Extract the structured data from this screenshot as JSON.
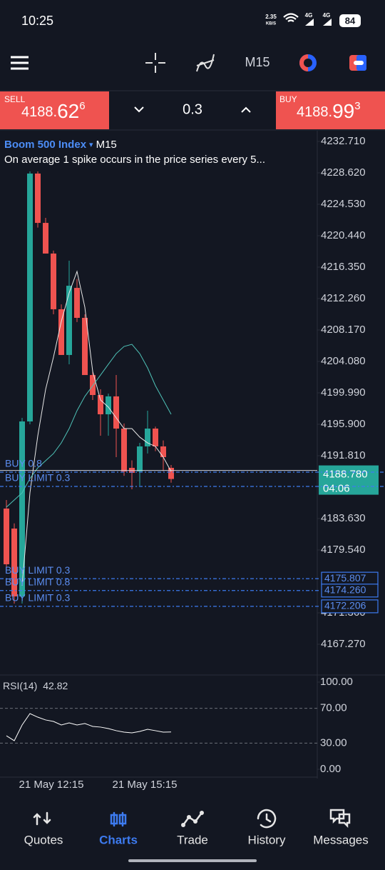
{
  "status_bar": {
    "time": "10:25",
    "net_speed": "2.35",
    "net_unit": "KB/S",
    "signal_1": "4G",
    "signal_2": "4G",
    "battery": "84"
  },
  "toolbar": {
    "timeframe": "M15"
  },
  "trade_bar": {
    "sell": {
      "label": "SELL",
      "price": "4188.",
      "price_big": "62",
      "price_sup": "6"
    },
    "volume": "0.3",
    "buy": {
      "label": "BUY",
      "price": "4188.",
      "price_big": "99",
      "price_sup": "3"
    }
  },
  "chart": {
    "symbol": "Boom 500 Index",
    "symbol_caret": "▾",
    "timeframe": "M15",
    "note": "On average 1 spike occurs in the price series every 5...",
    "ylim": [
      4163.27,
      4233.92
    ],
    "yticks": [
      {
        "value": 4232.71,
        "label": "4232.710"
      },
      {
        "value": 4228.62,
        "label": "4228.620"
      },
      {
        "value": 4224.53,
        "label": "4224.530"
      },
      {
        "value": 4220.44,
        "label": "4220.440"
      },
      {
        "value": 4216.35,
        "label": "4216.350"
      },
      {
        "value": 4212.26,
        "label": "4212.260"
      },
      {
        "value": 4208.17,
        "label": "4208.170"
      },
      {
        "value": 4204.08,
        "label": "4204.080"
      },
      {
        "value": 4199.99,
        "label": "4199.990"
      },
      {
        "value": 4195.9,
        "label": "4195.900"
      },
      {
        "value": 4191.81,
        "label": "4191.810"
      },
      {
        "value": 4183.63,
        "label": "4183.630"
      },
      {
        "value": 4179.54,
        "label": "4179.540"
      },
      {
        "value": 4171.36,
        "label": "4171.360"
      },
      {
        "value": 4167.27,
        "label": "4167.270"
      }
    ],
    "candles": {
      "open": [
        4184.93,
        4182.33,
        4173.5,
        4196.27,
        4228.53,
        4222.11,
        4218.12,
        4210.87,
        4204.92,
        4213.65,
        4209.75,
        4202.31,
        4199.71,
        4197.2,
        4199.53,
        4195.34,
        4190.23,
        4189.76,
        4193.02,
        4195.34,
        4193.02,
        4190.23
      ],
      "high": [
        4186.05,
        4183.0,
        4196.74,
        4228.81,
        4228.81,
        4222.76,
        4218.5,
        4211.5,
        4217.19,
        4214.8,
        4210.2,
        4202.9,
        4200.45,
        4199.9,
        4202.31,
        4196.0,
        4191.2,
        4193.48,
        4197.67,
        4195.6,
        4193.8,
        4190.6
      ],
      "low": [
        4177.22,
        4172.57,
        4172.57,
        4195.9,
        4221.5,
        4218.12,
        4210.22,
        4204.92,
        4203.71,
        4209.2,
        4202.31,
        4199.06,
        4194.41,
        4194.41,
        4191.62,
        4189.2,
        4187.44,
        4187.9,
        4192.1,
        4192.4,
        4189.8,
        4188.3
      ],
      "close": [
        4177.68,
        4173.5,
        4196.27,
        4228.53,
        4222.11,
        4218.12,
        4210.87,
        4204.92,
        4213.93,
        4209.75,
        4202.31,
        4199.71,
        4197.2,
        4199.53,
        4195.34,
        4189.76,
        4189.58,
        4193.02,
        4195.34,
        4193.02,
        4191.62,
        4188.78
      ]
    },
    "ma_fast": [
      null,
      null,
      4174.89,
      4186.98,
      4194.41,
      4200.45,
      4204.64,
      4209.29,
      4213.0,
      4215.79,
      4211.14,
      4202.78,
      4199.06,
      4198.13,
      4196.74,
      4195.34,
      4195.34,
      4194.23,
      4193.48,
      4193.02,
      4191.62,
      4189.76
    ],
    "ma_slow": [
      4185.12,
      4186.05,
      4186.98,
      4188.84,
      4190.23,
      4191.16,
      4192.09,
      4193.48,
      4195.34,
      4197.67,
      4199.53,
      4200.92,
      4202.31,
      4203.71,
      4205.1,
      4206.03,
      4206.31,
      4205.1,
      4203.24,
      4200.92,
      4199.06,
      4197.2
    ],
    "current_price": {
      "value": 4188.78,
      "label": "4188.780"
    },
    "countdown": "04:06",
    "orders": [
      {
        "label": "BUY 0.8",
        "price": 4189.67
      },
      {
        "label": "BUY LIMIT 0.3",
        "price": 4187.81
      },
      {
        "label": "BUY LIMIT 0.3",
        "price": {
          "value": 4175.807,
          "label": "4175.807"
        }
      },
      {
        "label": "BUY LIMIT 0.8",
        "price": {
          "value": 4174.26,
          "label": "4174.260"
        }
      },
      {
        "label": "BUY LIMIT 0.3",
        "price": {
          "value": 4172.206,
          "label": "4172.206"
        }
      }
    ],
    "x_labels": [
      "21 May 12:15",
      "21 May 15:15"
    ]
  },
  "rsi": {
    "label": "RSI(14)",
    "value": 42.82,
    "ylim": [
      -9,
      105.7
    ],
    "yticks": [
      {
        "value": 100,
        "label": "100.00"
      },
      {
        "value": 70,
        "label": "70.00"
      },
      {
        "value": 30,
        "label": "30.00"
      },
      {
        "value": 0,
        "label": "0.00"
      }
    ],
    "values": [
      38.5,
      32.8,
      50.8,
      63.9,
      59.8,
      56.6,
      54.9,
      50.8,
      53.3,
      50.8,
      52.5,
      49.2,
      48.4,
      46.7,
      44.3,
      42.6,
      41.8,
      43.4,
      45.9,
      44.3,
      42.6,
      42.82
    ]
  },
  "nav": {
    "items": [
      "Quotes",
      "Charts",
      "Trade",
      "History",
      "Messages"
    ],
    "active": "Charts"
  }
}
